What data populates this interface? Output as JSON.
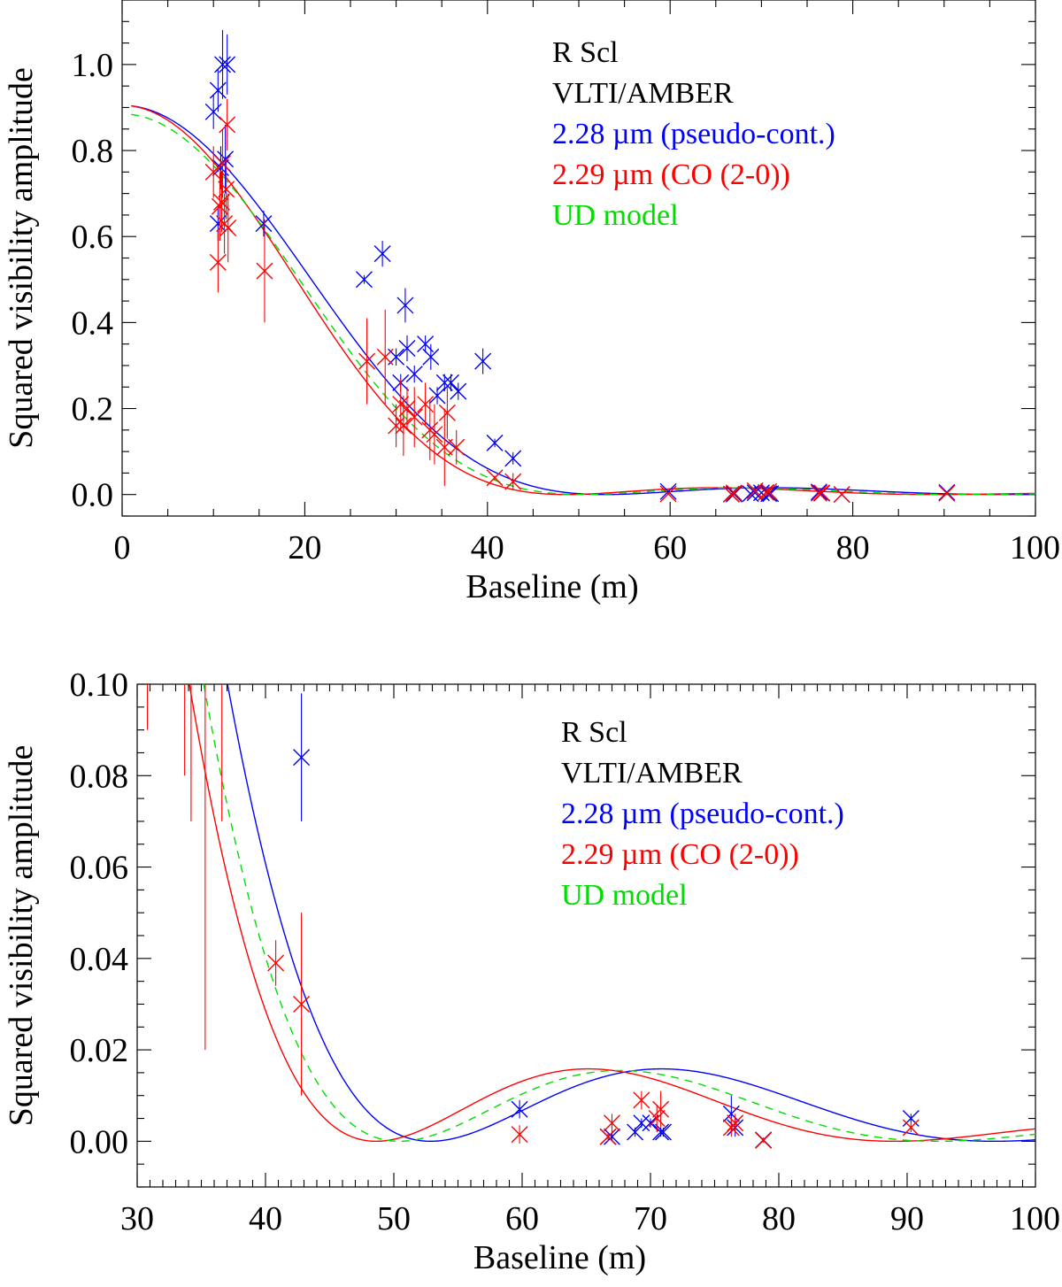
{
  "chart_data": [
    {
      "type": "scatter",
      "title": "",
      "xlabel": "Baseline (m)",
      "ylabel": "Squared visibility amplitude",
      "xlim": [
        0,
        100
      ],
      "ylim": [
        -0.05,
        1.15
      ],
      "xticks": [
        0,
        20,
        40,
        60,
        80,
        100
      ],
      "xtick_labels": [
        "0",
        "20",
        "40",
        "60",
        "80",
        "100"
      ],
      "x_minor_step": 5,
      "yticks": [
        0.0,
        0.2,
        0.4,
        0.6,
        0.8,
        1.0
      ],
      "ytick_labels": [
        "0.0",
        "0.2",
        "0.4",
        "0.6",
        "0.8",
        "1.0"
      ],
      "y_minor_step": 0.05,
      "legend_position": "top-right",
      "legend": [
        {
          "text": "R Scl",
          "color": "#000000"
        },
        {
          "text": "VLTI/AMBER",
          "color": "#000000"
        },
        {
          "text": "2.28 µm (pseudo-cont.)",
          "color": "#0000ff"
        },
        {
          "text": "2.29 µm (CO (2-0))",
          "color": "#ff0000"
        },
        {
          "text": "UD model",
          "color": "#00dd00"
        }
      ],
      "series": [
        {
          "name": "2.28 µm (pseudo-cont.)",
          "color": "#0000ff",
          "style": "markers-errorbars",
          "points": [
            {
              "x": 10.0,
              "y": 0.89,
              "err": 0.04
            },
            {
              "x": 10.5,
              "y": 0.94,
              "err": 0.05
            },
            {
              "x": 10.5,
              "y": 0.63,
              "err": 0.04
            },
            {
              "x": 10.8,
              "y": 0.76,
              "err": 0.05
            },
            {
              "x": 11.0,
              "y": 1.0,
              "err": 0.08
            },
            {
              "x": 11.3,
              "y": 0.78,
              "err": 0.08
            },
            {
              "x": 11.5,
              "y": 1.0,
              "err": 0.07
            },
            {
              "x": 15.5,
              "y": 0.63,
              "err": 0.03
            },
            {
              "x": 26.5,
              "y": 0.5,
              "err": 0.01
            },
            {
              "x": 28.5,
              "y": 0.56,
              "err": 0.03
            },
            {
              "x": 30.0,
              "y": 0.32,
              "err": 0.02
            },
            {
              "x": 30.5,
              "y": 0.26,
              "err": 0.02
            },
            {
              "x": 31.0,
              "y": 0.44,
              "err": 0.04
            },
            {
              "x": 31.2,
              "y": 0.34,
              "err": 0.03
            },
            {
              "x": 32.0,
              "y": 0.28,
              "err": 0.02
            },
            {
              "x": 33.2,
              "y": 0.35,
              "err": 0.02
            },
            {
              "x": 33.8,
              "y": 0.32,
              "err": 0.03
            },
            {
              "x": 34.5,
              "y": 0.23,
              "err": 0.02
            },
            {
              "x": 35.3,
              "y": 0.26,
              "err": 0.02
            },
            {
              "x": 36.0,
              "y": 0.26,
              "err": 0.02
            },
            {
              "x": 36.8,
              "y": 0.24,
              "err": 0.02
            },
            {
              "x": 39.5,
              "y": 0.31,
              "err": 0.03
            },
            {
              "x": 40.8,
              "y": 0.12,
              "err": 0.01
            },
            {
              "x": 42.8,
              "y": 0.084,
              "err": 0.014
            },
            {
              "x": 59.8,
              "y": 0.007,
              "err": 0.002
            },
            {
              "x": 66.7,
              "y": 0.001,
              "err": 0.001
            },
            {
              "x": 67.0,
              "y": 0.001,
              "err": 0.001
            },
            {
              "x": 68.8,
              "y": 0.002,
              "err": 0.001
            },
            {
              "x": 69.3,
              "y": 0.004,
              "err": 0.001
            },
            {
              "x": 70.0,
              "y": 0.004,
              "err": 0.001
            },
            {
              "x": 70.8,
              "y": 0.002,
              "err": 0.001
            },
            {
              "x": 71.0,
              "y": 0.002,
              "err": 0.001
            },
            {
              "x": 76.3,
              "y": 0.006,
              "err": 0.004
            },
            {
              "x": 76.6,
              "y": 0.003,
              "err": 0.002
            },
            {
              "x": 78.8,
              "y": 0.0003,
              "err": 0.0005
            },
            {
              "x": 90.3,
              "y": 0.005,
              "err": 0.001
            }
          ]
        },
        {
          "name": "2.29 µm (CO (2-0))",
          "color": "#ff0000",
          "style": "markers-errorbars",
          "points": [
            {
              "x": 10.0,
              "y": 0.75,
              "err": 0.06
            },
            {
              "x": 10.5,
              "y": 0.54,
              "err": 0.07
            },
            {
              "x": 10.7,
              "y": 0.67,
              "err": 0.08
            },
            {
              "x": 10.9,
              "y": 0.68,
              "err": 0.07
            },
            {
              "x": 11.0,
              "y": 0.77,
              "err": 0.08
            },
            {
              "x": 11.2,
              "y": 0.63,
              "err": 0.07
            },
            {
              "x": 11.4,
              "y": 0.71,
              "err": 0.07
            },
            {
              "x": 11.5,
              "y": 0.86,
              "err": 0.06
            },
            {
              "x": 11.6,
              "y": 0.62,
              "err": 0.08
            },
            {
              "x": 15.6,
              "y": 0.52,
              "err": 0.12
            },
            {
              "x": 26.8,
              "y": 0.31,
              "err": 0.1
            },
            {
              "x": 28.8,
              "y": 0.32,
              "err": 0.11
            },
            {
              "x": 30.0,
              "y": 0.16,
              "err": 0.05
            },
            {
              "x": 30.5,
              "y": 0.21,
              "err": 0.06
            },
            {
              "x": 30.8,
              "y": 0.16,
              "err": 0.07
            },
            {
              "x": 31.2,
              "y": 0.2,
              "err": 0.05
            },
            {
              "x": 32.0,
              "y": 0.18,
              "err": 0.07
            },
            {
              "x": 33.2,
              "y": 0.21,
              "err": 0.05
            },
            {
              "x": 33.7,
              "y": 0.15,
              "err": 0.07
            },
            {
              "x": 34.2,
              "y": 0.14,
              "err": 0.07
            },
            {
              "x": 35.3,
              "y": 0.11,
              "err": 0.09
            },
            {
              "x": 35.6,
              "y": 0.19,
              "err": 0.06
            },
            {
              "x": 36.6,
              "y": 0.11,
              "err": 0.04
            },
            {
              "x": 40.8,
              "y": 0.039,
              "err": 0.005
            },
            {
              "x": 42.8,
              "y": 0.03,
              "err": 0.02
            },
            {
              "x": 59.8,
              "y": 0.0015,
              "err": 0.002
            },
            {
              "x": 66.7,
              "y": 0.001,
              "err": 0.001
            },
            {
              "x": 67.0,
              "y": 0.004,
              "err": 0.002
            },
            {
              "x": 69.3,
              "y": 0.009,
              "err": 0.002
            },
            {
              "x": 70.5,
              "y": 0.005,
              "err": 0.003
            },
            {
              "x": 70.8,
              "y": 0.007,
              "err": 0.004
            },
            {
              "x": 76.3,
              "y": 0.003,
              "err": 0.002
            },
            {
              "x": 76.6,
              "y": 0.004,
              "err": 0.002
            },
            {
              "x": 78.8,
              "y": 0.0002,
              "err": 0.0005
            },
            {
              "x": 90.3,
              "y": 0.003,
              "err": 0.001
            }
          ]
        },
        {
          "name": "2.28 µm model",
          "color": "#0000ff",
          "style": "solid",
          "model": "ud",
          "V0": 0.905,
          "diam_mas": 10.85,
          "lambda_um": 2.28
        },
        {
          "name": "2.29 µm model",
          "color": "#ff0000",
          "style": "solid",
          "model": "ud",
          "V0": 0.905,
          "diam_mas": 11.85,
          "lambda_um": 2.29
        },
        {
          "name": "UD model",
          "color": "#00dd00",
          "style": "dashed",
          "model": "ud",
          "V0": 0.885,
          "diam_mas": 11.4,
          "lambda_um": 2.285
        }
      ]
    },
    {
      "type": "scatter",
      "title": "",
      "xlabel": "Baseline (m)",
      "ylabel": "Squared visibility amplitude",
      "xlim": [
        30,
        100
      ],
      "ylim": [
        -0.01,
        0.1
      ],
      "xticks": [
        30,
        40,
        50,
        60,
        70,
        80,
        90,
        100
      ],
      "xtick_labels": [
        "30",
        "40",
        "50",
        "60",
        "70",
        "80",
        "90",
        "100"
      ],
      "x_minor_step": 1,
      "yticks": [
        0.0,
        0.02,
        0.04,
        0.06,
        0.08,
        0.1
      ],
      "ytick_labels": [
        "0.00",
        "0.02",
        "0.04",
        "0.06",
        "0.08",
        "0.10"
      ],
      "y_minor_step": 0.005,
      "legend_position": "top-right",
      "legend": [
        {
          "text": "R Scl",
          "color": "#000000"
        },
        {
          "text": "VLTI/AMBER",
          "color": "#000000"
        },
        {
          "text": "2.28 µm (pseudo-cont.)",
          "color": "#0000ff"
        },
        {
          "text": "2.29 µm (CO (2-0))",
          "color": "#ff0000"
        },
        {
          "text": "UD model",
          "color": "#00dd00"
        }
      ],
      "series_ref": "same as chart 0 (zoomed view)"
    }
  ]
}
